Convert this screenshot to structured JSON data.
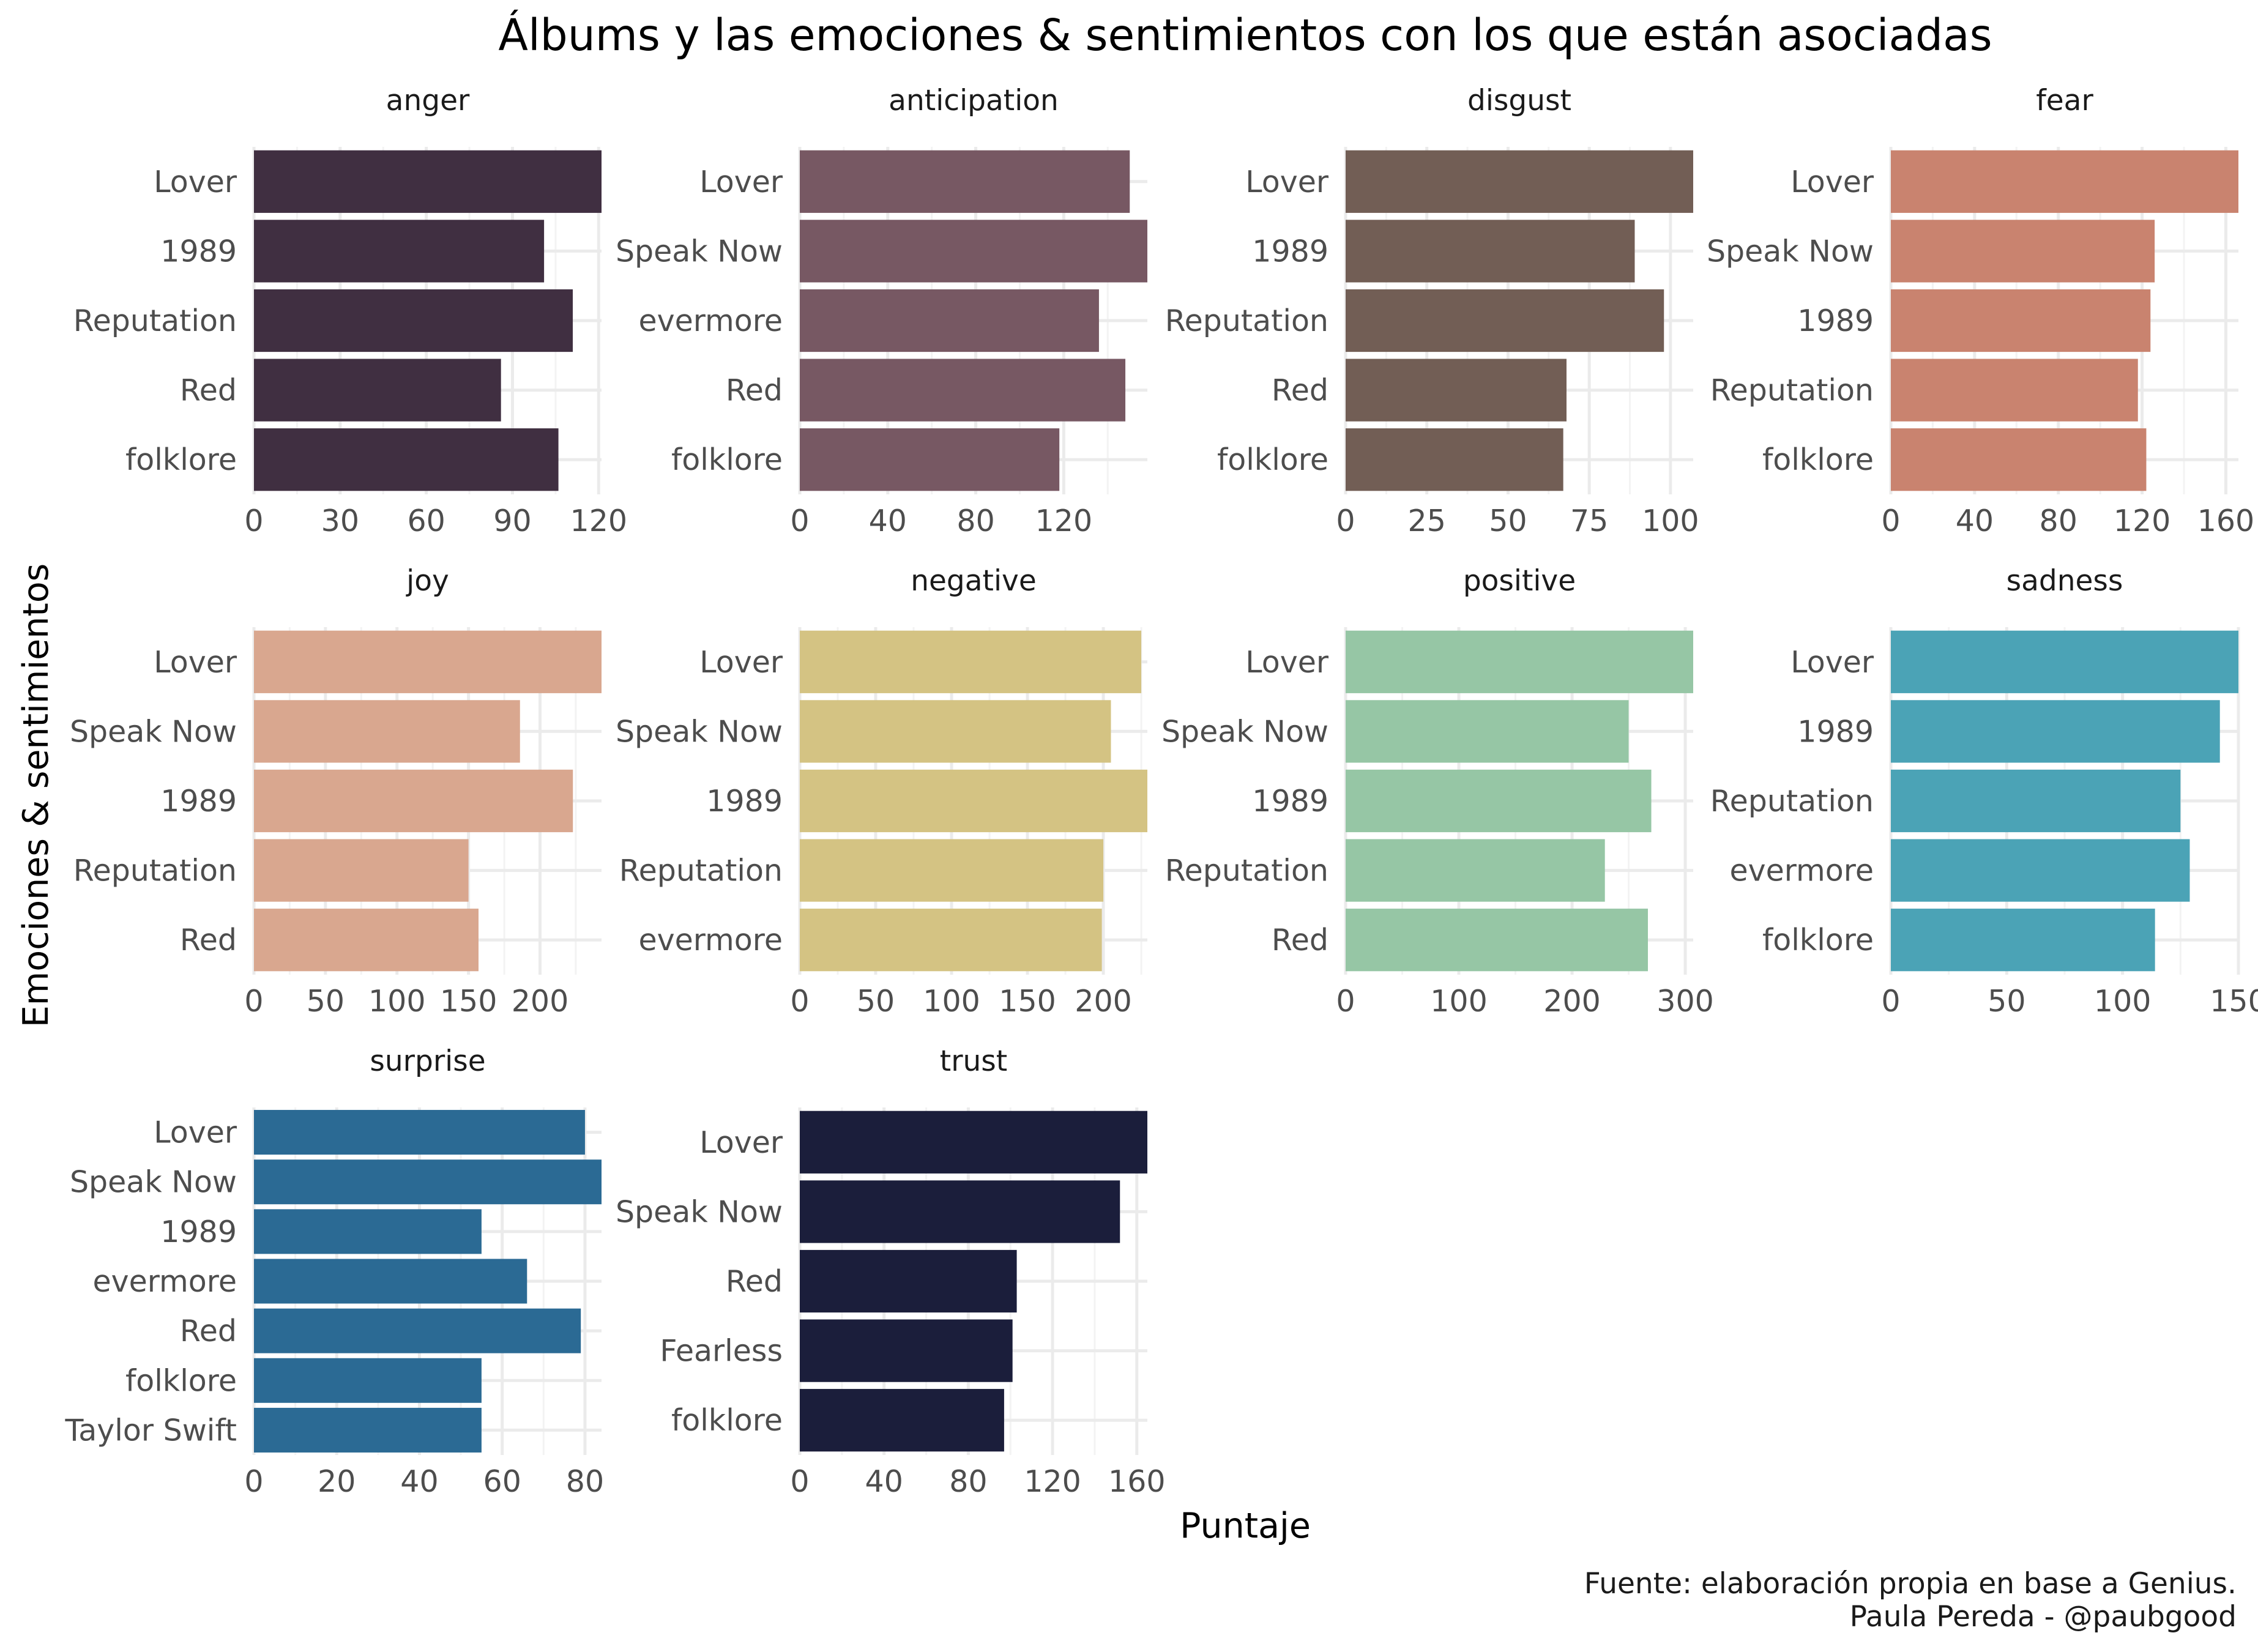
{
  "title": "Álbums y las emociones & sentimientos con los que están asociadas",
  "xlabel": "Puntaje",
  "ylabel": "Emociones & sentimientos",
  "caption": [
    "Fuente: elaboración propia en base a Genius.",
    "Paula Pereda - @paubgood"
  ],
  "chart_data": [
    {
      "type": "bar",
      "orientation": "horizontal",
      "title": "anger",
      "color": "#402f41",
      "categories": [
        "Lover",
        "1989",
        "Reputation",
        "Red",
        "folklore"
      ],
      "values": [
        121,
        101,
        111,
        86,
        106
      ],
      "xlim": [
        0,
        121
      ],
      "xticks": [
        0,
        30,
        60,
        90,
        120
      ]
    },
    {
      "type": "bar",
      "orientation": "horizontal",
      "title": "anticipation",
      "color": "#775863",
      "categories": [
        "Lover",
        "Speak Now",
        "evermore",
        "Red",
        "folklore"
      ],
      "values": [
        150,
        158,
        136,
        148,
        118
      ],
      "xlim": [
        0,
        158
      ],
      "xticks": [
        0,
        40,
        80,
        120
      ]
    },
    {
      "type": "bar",
      "orientation": "horizontal",
      "title": "disgust",
      "color": "#725e55",
      "categories": [
        "Lover",
        "1989",
        "Reputation",
        "Red",
        "folklore"
      ],
      "values": [
        107,
        89,
        98,
        68,
        67
      ],
      "xlim": [
        0,
        107
      ],
      "xticks": [
        0,
        25,
        50,
        75,
        100
      ]
    },
    {
      "type": "bar",
      "orientation": "horizontal",
      "title": "fear",
      "color": "#c9836f",
      "categories": [
        "Lover",
        "Speak Now",
        "1989",
        "Reputation",
        "folklore"
      ],
      "values": [
        166,
        126,
        124,
        118,
        122
      ],
      "xlim": [
        0,
        166
      ],
      "xticks": [
        0,
        40,
        80,
        120,
        160
      ]
    },
    {
      "type": "bar",
      "orientation": "horizontal",
      "title": "joy",
      "color": "#d9a78f",
      "categories": [
        "Lover",
        "Speak Now",
        "1989",
        "Reputation",
        "Red"
      ],
      "values": [
        243,
        186,
        223,
        150,
        157
      ],
      "xlim": [
        0,
        243
      ],
      "xticks": [
        0,
        50,
        100,
        150,
        200
      ]
    },
    {
      "type": "bar",
      "orientation": "horizontal",
      "title": "negative",
      "color": "#d4c383",
      "categories": [
        "Lover",
        "Speak Now",
        "1989",
        "Reputation",
        "evermore"
      ],
      "values": [
        225,
        205,
        229,
        200,
        199
      ],
      "xlim": [
        0,
        229
      ],
      "xticks": [
        0,
        50,
        100,
        150,
        200
      ]
    },
    {
      "type": "bar",
      "orientation": "horizontal",
      "title": "positive",
      "color": "#96c6a5",
      "categories": [
        "Lover",
        "Speak Now",
        "1989",
        "Reputation",
        "Red"
      ],
      "values": [
        307,
        250,
        270,
        229,
        267
      ],
      "xlim": [
        0,
        307
      ],
      "xticks": [
        0,
        100,
        200,
        300
      ]
    },
    {
      "type": "bar",
      "orientation": "horizontal",
      "title": "sadness",
      "color": "#4ba3b6",
      "categories": [
        "Lover",
        "1989",
        "Reputation",
        "evermore",
        "folklore"
      ],
      "values": [
        150,
        142,
        125,
        129,
        114
      ],
      "xlim": [
        0,
        150
      ],
      "xticks": [
        0,
        50,
        100,
        150
      ]
    },
    {
      "type": "bar",
      "orientation": "horizontal",
      "title": "surprise",
      "color": "#2b6a94",
      "categories": [
        "Lover",
        "Speak Now",
        "1989",
        "evermore",
        "Red",
        "folklore",
        "Taylor Swift"
      ],
      "values": [
        80,
        84,
        55,
        66,
        79,
        55,
        55
      ],
      "xlim": [
        0,
        84
      ],
      "xticks": [
        0,
        20,
        40,
        60,
        80
      ]
    },
    {
      "type": "bar",
      "orientation": "horizontal",
      "title": "trust",
      "color": "#1b1e3b",
      "categories": [
        "Lover",
        "Speak Now",
        "Red",
        "Fearless",
        "folklore"
      ],
      "values": [
        165,
        152,
        103,
        101,
        97
      ],
      "xlim": [
        0,
        165
      ],
      "xticks": [
        0,
        40,
        80,
        120,
        160
      ]
    }
  ]
}
